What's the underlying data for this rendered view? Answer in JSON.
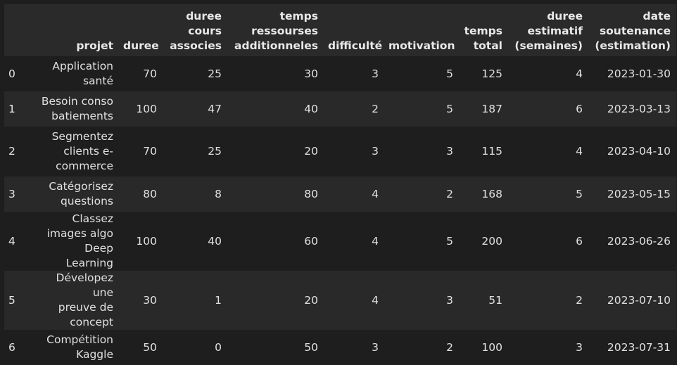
{
  "table": {
    "index_header": "",
    "columns": [
      "projet",
      "duree",
      "duree\ncours\nassocies",
      "temps\nressourses\nadditionneles",
      "difficulté",
      "motivation",
      "temps\ntotal",
      "duree\nestimatif\n(semaines)",
      "date\nsoutenance\n(estimation)"
    ],
    "rows": [
      {
        "index": "0",
        "cells": [
          "Application\nsanté",
          "70",
          "25",
          "30",
          "3",
          "5",
          "125",
          "4",
          "2023-01-30"
        ]
      },
      {
        "index": "1",
        "cells": [
          "Besoin conso\nbatiements",
          "100",
          "47",
          "40",
          "2",
          "5",
          "187",
          "6",
          "2023-03-13"
        ]
      },
      {
        "index": "2",
        "cells": [
          "Segmentez\nclients e-\ncommerce",
          "70",
          "25",
          "20",
          "3",
          "3",
          "115",
          "4",
          "2023-04-10"
        ]
      },
      {
        "index": "3",
        "cells": [
          "Catégorisez\nquestions",
          "80",
          "8",
          "80",
          "4",
          "2",
          "168",
          "5",
          "2023-05-15"
        ]
      },
      {
        "index": "4",
        "cells": [
          "Classez\nimages algo\nDeep Learning",
          "100",
          "40",
          "60",
          "4",
          "5",
          "200",
          "6",
          "2023-06-26"
        ]
      },
      {
        "index": "5",
        "cells": [
          "Dévelopez une\npreuve de\nconcept",
          "30",
          "1",
          "20",
          "4",
          "3",
          "51",
          "2",
          "2023-07-10"
        ]
      },
      {
        "index": "6",
        "cells": [
          "Compétition\nKaggle",
          "50",
          "0",
          "50",
          "3",
          "2",
          "100",
          "3",
          "2023-07-31"
        ]
      }
    ]
  },
  "colors": {
    "background": "#1e1e1e",
    "header_background": "#2a2a2a",
    "stripe_background": "#292929",
    "text": "#e6e6e6"
  }
}
